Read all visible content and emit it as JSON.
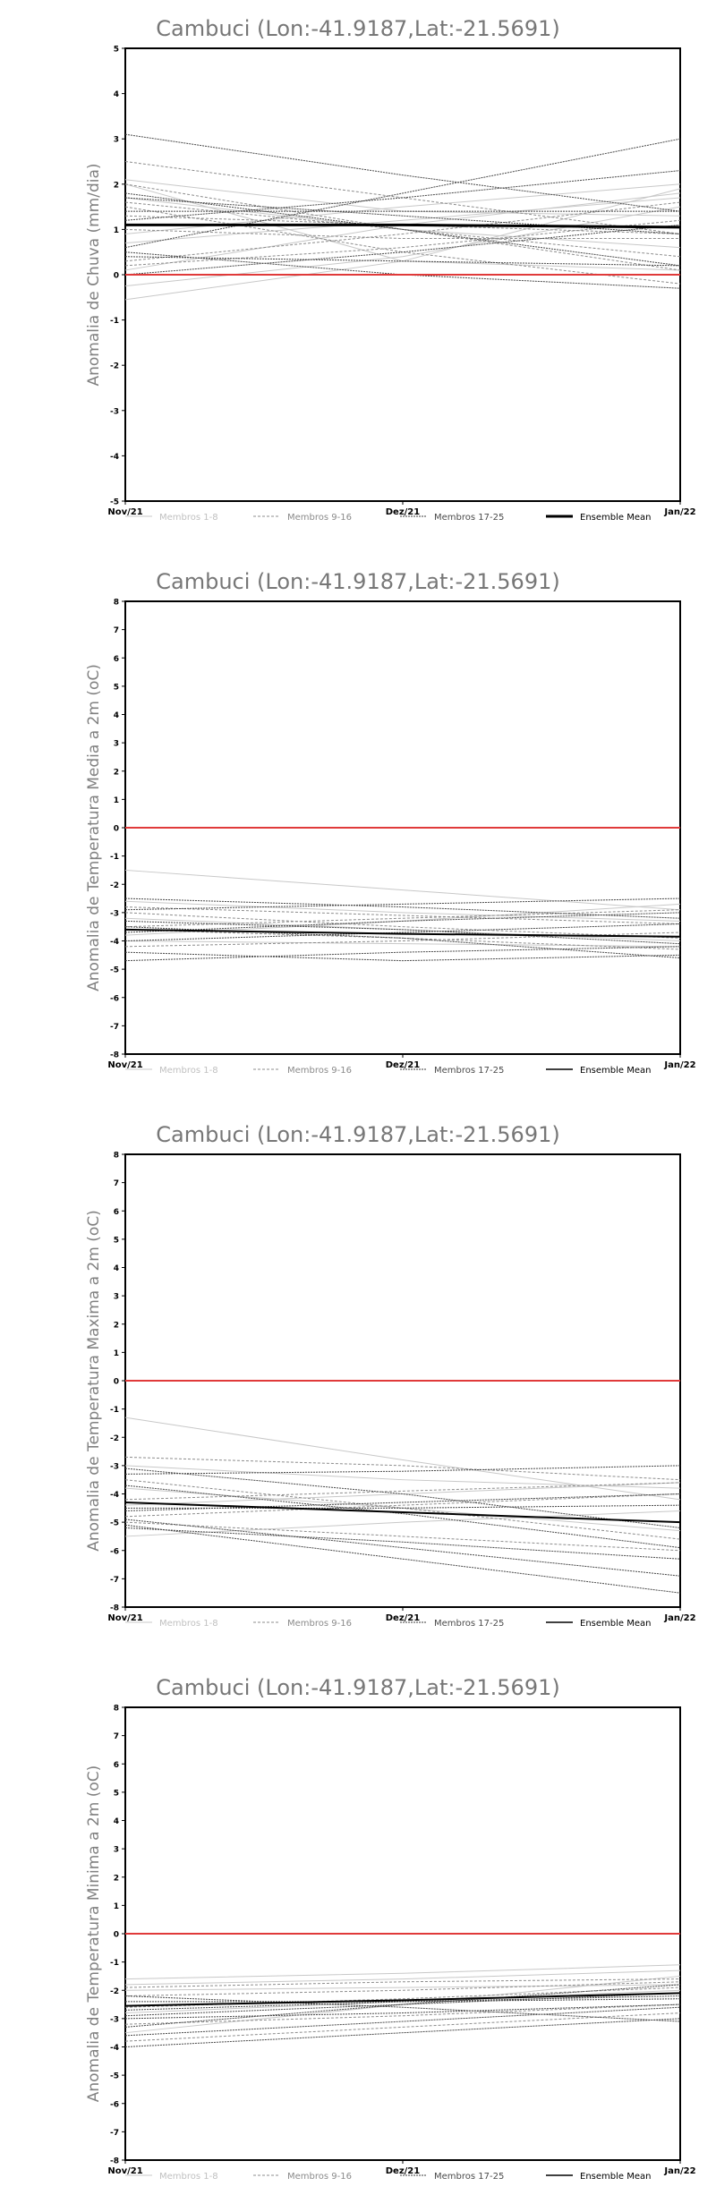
{
  "colors": {
    "zero_line": "#e03a3a",
    "members_1_8": "#c8c8c8",
    "members_9_16": "#8c8c8c",
    "members_17_25": "#4a4a4a",
    "ensemble": "#000000"
  },
  "chart_data": [
    {
      "type": "line",
      "title": "Cambuci (Lon:-41.9187,Lat:-21.5691)",
      "ylabel": "Anomalia de Chuva (mm/dia)",
      "xlabel": "",
      "x": [
        "Nov/21",
        "Dez/21",
        "Jan/22"
      ],
      "ylim": [
        -5,
        5
      ],
      "yticks": [
        -5,
        -4,
        -3,
        -2,
        -1,
        0,
        1,
        2,
        3,
        4,
        5
      ],
      "grid": false,
      "legend": [
        "Membros 1-8",
        "Membros 9-16",
        "Membros 17-25",
        "Ensemble Mean"
      ],
      "legend_position": "bottom",
      "reference_line": 0,
      "groups": [
        {
          "name": "Membros 1-8",
          "series": [
            [
              -0.55,
              0.3,
              1.9
            ],
            [
              0.9,
              1.5,
              2.0
            ],
            [
              2.0,
              0.3,
              0.1
            ],
            [
              -0.25,
              0.4,
              1.5
            ],
            [
              0.1,
              1.1,
              1.8
            ],
            [
              1.7,
              1.0,
              0.6
            ],
            [
              2.1,
              1.4,
              1.3
            ],
            [
              0.7,
              1.2,
              1.7
            ]
          ]
        },
        {
          "name": "Membros 9-16",
          "series": [
            [
              1.6,
              1.0,
              0.4
            ],
            [
              2.5,
              1.7,
              0.9
            ],
            [
              0.2,
              0.6,
              1.2
            ],
            [
              1.5,
              0.5,
              -0.2
            ],
            [
              0.3,
              0.9,
              1.6
            ],
            [
              2.0,
              1.0,
              0.1
            ],
            [
              1.0,
              0.8,
              0.8
            ],
            [
              1.3,
              1.1,
              0.9
            ]
          ]
        },
        {
          "name": "Membros 17-25",
          "series": [
            [
              3.1,
              2.2,
              1.4
            ],
            [
              0.6,
              1.8,
              3.0
            ],
            [
              1.4,
              1.4,
              1.4
            ],
            [
              1.8,
              1.0,
              0.2
            ],
            [
              0.4,
              0.3,
              0.2
            ],
            [
              1.2,
              1.7,
              2.3
            ],
            [
              0.5,
              0.0,
              -0.3
            ],
            [
              1.7,
              1.3,
              0.9
            ],
            [
              0.0,
              0.5,
              1.1
            ]
          ]
        }
      ],
      "ensemble_mean": [
        1.1,
        1.1,
        1.05
      ]
    },
    {
      "type": "line",
      "title": "Cambuci (Lon:-41.9187,Lat:-21.5691)",
      "ylabel": "Anomalia de Temperatura Media a 2m (oC)",
      "xlabel": "",
      "x": [
        "Nov/21",
        "Dez/21",
        "Jan/22"
      ],
      "ylim": [
        -8,
        8
      ],
      "yticks": [
        -8,
        -7,
        -6,
        -5,
        -4,
        -3,
        -2,
        -1,
        0,
        1,
        2,
        3,
        4,
        5,
        6,
        7,
        8
      ],
      "grid": false,
      "legend": [
        "Membros 1-8",
        "Membros 9-16",
        "Membros 17-25",
        "Ensemble Mean"
      ],
      "legend_position": "bottom",
      "reference_line": 0,
      "groups": [
        {
          "name": "Membros 1-8",
          "series": [
            [
              -1.5,
              -2.2,
              -2.9
            ],
            [
              -3.2,
              -3.6,
              -4.0
            ],
            [
              -2.6,
              -3.0,
              -3.3
            ],
            [
              -3.8,
              -3.3,
              -2.7
            ],
            [
              -4.0,
              -4.1,
              -4.2
            ]
          ]
        },
        {
          "name": "Membros 9-16",
          "series": [
            [
              -2.8,
              -3.1,
              -3.4
            ],
            [
              -3.5,
              -3.2,
              -2.9
            ],
            [
              -4.2,
              -4.0,
              -3.7
            ],
            [
              -3.0,
              -3.5,
              -3.9
            ],
            [
              -3.6,
              -3.9,
              -4.3
            ]
          ]
        },
        {
          "name": "Membros 17-25",
          "series": [
            [
              -2.5,
              -2.8,
              -3.2
            ],
            [
              -4.4,
              -4.7,
              -4.5
            ],
            [
              -4.0,
              -3.7,
              -3.4
            ],
            [
              -3.3,
              -3.6,
              -4.1
            ],
            [
              -2.9,
              -2.7,
              -2.5
            ],
            [
              -4.7,
              -4.4,
              -4.2
            ],
            [
              -3.5,
              -3.9,
              -4.6
            ],
            [
              -3.7,
              -3.3,
              -3.0
            ]
          ]
        }
      ],
      "ensemble_mean": [
        -3.6,
        -3.75,
        -3.85
      ]
    },
    {
      "type": "line",
      "title": "Cambuci (Lon:-41.9187,Lat:-21.5691)",
      "ylabel": "Anomalia de Temperatura Maxima a 2m (oC)",
      "xlabel": "",
      "x": [
        "Nov/21",
        "Dez/21",
        "Jan/22"
      ],
      "ylim": [
        -8,
        8
      ],
      "yticks": [
        -8,
        -7,
        -6,
        -5,
        -4,
        -3,
        -2,
        -1,
        0,
        1,
        2,
        3,
        4,
        5,
        6,
        7,
        8
      ],
      "grid": false,
      "legend": [
        "Membros 1-8",
        "Membros 9-16",
        "Membros 17-25",
        "Ensemble Mean"
      ],
      "legend_position": "bottom",
      "reference_line": 0,
      "groups": [
        {
          "name": "Membros 1-8",
          "series": [
            [
              -1.3,
              -2.8,
              -4.2
            ],
            [
              -3.8,
              -4.5,
              -5.3
            ],
            [
              -5.5,
              -5.0,
              -4.6
            ],
            [
              -3.0,
              -3.5,
              -3.8
            ],
            [
              -4.4,
              -4.0,
              -3.6
            ]
          ]
        },
        {
          "name": "Membros 9-16",
          "series": [
            [
              -2.7,
              -3.0,
              -3.5
            ],
            [
              -4.8,
              -4.4,
              -4.0
            ],
            [
              -3.5,
              -4.5,
              -5.6
            ],
            [
              -5.0,
              -5.5,
              -6.0
            ],
            [
              -4.2,
              -3.9,
              -3.6
            ]
          ]
        },
        {
          "name": "Membros 17-25",
          "series": [
            [
              -3.1,
              -4.0,
              -5.2
            ],
            [
              -5.1,
              -6.3,
              -7.5
            ],
            [
              -4.5,
              -4.5,
              -4.4
            ],
            [
              -3.3,
              -3.2,
              -3.0
            ],
            [
              -4.9,
              -5.9,
              -6.9
            ],
            [
              -3.7,
              -4.7,
              -5.9
            ],
            [
              -5.2,
              -5.7,
              -6.3
            ],
            [
              -4.6,
              -4.3,
              -4.0
            ]
          ]
        }
      ],
      "ensemble_mean": [
        -4.3,
        -4.65,
        -5.0
      ]
    },
    {
      "type": "line",
      "title": "Cambuci (Lon:-41.9187,Lat:-21.5691)",
      "ylabel": "Anomalia de Temperatura Minima a 2m (oC)",
      "xlabel": "",
      "x": [
        "Nov/21",
        "Dez/21",
        "Jan/22"
      ],
      "ylim": [
        -8,
        8
      ],
      "yticks": [
        -8,
        -7,
        -6,
        -5,
        -4,
        -3,
        -2,
        -1,
        0,
        1,
        2,
        3,
        4,
        5,
        6,
        7,
        8
      ],
      "grid": false,
      "legend": [
        "Membros 1-8",
        "Membros 9-16",
        "Membros 17-25",
        "Ensemble Mean"
      ],
      "legend_position": "bottom",
      "reference_line": 0,
      "groups": [
        {
          "name": "Membros 1-8",
          "series": [
            [
              -1.6,
              -1.4,
              -1.1
            ],
            [
              -3.5,
              -2.5,
              -1.5
            ],
            [
              -2.0,
              -1.9,
              -1.8
            ],
            [
              -2.8,
              -2.4,
              -2.0
            ],
            [
              -1.8,
              -1.6,
              -1.3
            ]
          ]
        },
        {
          "name": "Membros 9-16",
          "series": [
            [
              -2.2,
              -2.0,
              -1.7
            ],
            [
              -3.2,
              -2.9,
              -2.5
            ],
            [
              -2.6,
              -2.3,
              -1.9
            ],
            [
              -3.8,
              -3.3,
              -2.8
            ],
            [
              -1.9,
              -1.7,
              -1.6
            ]
          ]
        },
        {
          "name": "Membros 17-25",
          "series": [
            [
              -4.0,
              -3.5,
              -3.0
            ],
            [
              -3.3,
              -2.5,
              -1.8
            ],
            [
              -2.4,
              -2.4,
              -2.3
            ],
            [
              -3.6,
              -3.1,
              -2.6
            ],
            [
              -2.7,
              -2.4,
              -2.2
            ],
            [
              -2.9,
              -2.5,
              -2.1
            ],
            [
              -3.0,
              -2.8,
              -2.5
            ],
            [
              -2.2,
              -2.6,
              -3.1
            ]
          ]
        }
      ],
      "ensemble_mean": [
        -2.55,
        -2.35,
        -2.1
      ]
    }
  ]
}
